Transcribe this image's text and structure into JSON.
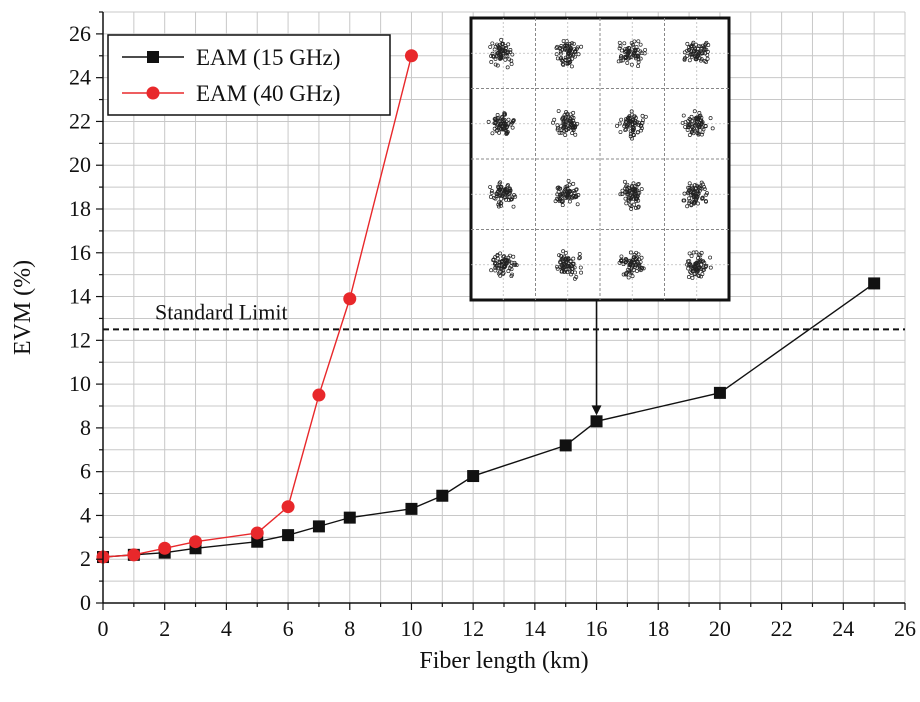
{
  "chart_data": {
    "type": "line",
    "title": "",
    "xlabel": "Fiber length (km)",
    "ylabel": "EVM (%)",
    "xlim": [
      0,
      26
    ],
    "ylim": [
      0,
      27
    ],
    "x_ticks": [
      0,
      2,
      4,
      6,
      8,
      10,
      12,
      14,
      16,
      18,
      20,
      22,
      24,
      26
    ],
    "y_ticks": [
      0,
      2,
      4,
      6,
      8,
      10,
      12,
      14,
      16,
      18,
      20,
      22,
      24,
      26
    ],
    "grid": true,
    "legend_position": "top-left",
    "series": [
      {
        "name": "EAM (15 GHz)",
        "color": "#111111",
        "marker": "square",
        "x": [
          0,
          1,
          2,
          3,
          5,
          6,
          7,
          8,
          10,
          11,
          12,
          15,
          16,
          20,
          25
        ],
        "y": [
          2.1,
          2.2,
          2.3,
          2.5,
          2.8,
          3.1,
          3.5,
          3.9,
          4.3,
          4.9,
          5.8,
          7.2,
          8.3,
          9.6,
          14.6
        ]
      },
      {
        "name": "EAM (40 GHz)",
        "color": "#e8282b",
        "marker": "circle",
        "x": [
          0,
          1,
          2,
          3,
          5,
          6,
          7,
          8,
          10
        ],
        "y": [
          2.1,
          2.2,
          2.5,
          2.8,
          3.2,
          4.4,
          9.5,
          13.9,
          25.0
        ]
      }
    ],
    "reference_line": {
      "label": "Standard Limit",
      "y": 12.5
    },
    "inset": {
      "description_visible": false,
      "grid_rows": 4,
      "grid_cols": 4,
      "arrow_to_x": 16,
      "arrow_to_y": 8.3
    }
  }
}
